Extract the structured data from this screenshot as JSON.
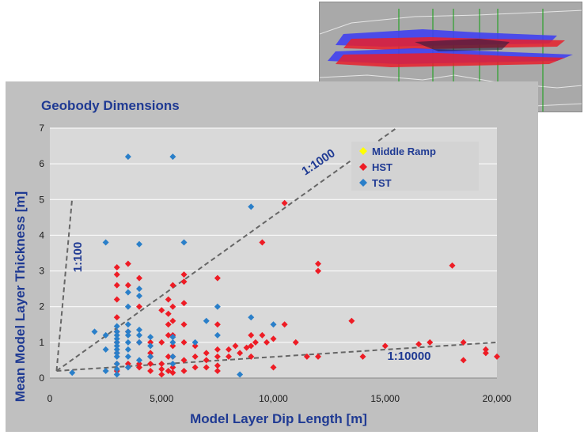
{
  "colors": {
    "panel": "#c0c0c0",
    "plot": "#d9d9d9",
    "title": "#1f3a93",
    "hst": "#ee1c25",
    "tst": "#2a7fc9",
    "middle_ramp": "#ffff00"
  },
  "chart_data": {
    "type": "scatter",
    "title": "Geobody Dimensions",
    "xlabel": "Model Layer Dip Length [m]",
    "ylabel": "Mean  Model Layer Thickness [m]",
    "xlim": [
      0,
      20000
    ],
    "ylim": [
      0,
      7
    ],
    "x_ticks": [
      "0",
      "5,000",
      "10,000",
      "15,000",
      "20,000"
    ],
    "y_ticks": [
      "0",
      "1",
      "2",
      "3",
      "4",
      "5",
      "6",
      "7"
    ],
    "grid": true,
    "legend_position": "top-right",
    "series": [
      {
        "name": "Middle Ramp",
        "color": "#ffff00",
        "points": []
      },
      {
        "name": "HST",
        "color": "#ee1c25",
        "points": [
          [
            3000,
            3.1
          ],
          [
            3000,
            2.9
          ],
          [
            3000,
            2.6
          ],
          [
            3000,
            2.2
          ],
          [
            3000,
            1.7
          ],
          [
            3000,
            1.3
          ],
          [
            3000,
            1.0
          ],
          [
            3000,
            0.7
          ],
          [
            3000,
            0.4
          ],
          [
            3000,
            0.2
          ],
          [
            3500,
            3.2
          ],
          [
            3500,
            2.6
          ],
          [
            3500,
            1.3
          ],
          [
            3500,
            0.4
          ],
          [
            4000,
            2.8
          ],
          [
            4000,
            2.0
          ],
          [
            4000,
            1.0
          ],
          [
            4000,
            0.4
          ],
          [
            4000,
            0.3
          ],
          [
            4500,
            1.0
          ],
          [
            4500,
            0.7
          ],
          [
            4500,
            0.6
          ],
          [
            4500,
            0.4
          ],
          [
            4500,
            0.2
          ],
          [
            5000,
            1.9
          ],
          [
            5000,
            1.0
          ],
          [
            5000,
            0.4
          ],
          [
            5000,
            0.25
          ],
          [
            5000,
            0.1
          ],
          [
            5300,
            2.2
          ],
          [
            5300,
            1.8
          ],
          [
            5300,
            1.5
          ],
          [
            5300,
            1.2
          ],
          [
            5300,
            0.6
          ],
          [
            5300,
            0.2
          ],
          [
            5500,
            2.6
          ],
          [
            5500,
            2.0
          ],
          [
            5500,
            1.6
          ],
          [
            5500,
            1.2
          ],
          [
            5500,
            0.9
          ],
          [
            5500,
            0.6
          ],
          [
            5500,
            0.3
          ],
          [
            5500,
            0.15
          ],
          [
            6000,
            2.9
          ],
          [
            6000,
            2.7
          ],
          [
            6000,
            2.1
          ],
          [
            6000,
            1.5
          ],
          [
            6000,
            1.0
          ],
          [
            6000,
            0.5
          ],
          [
            6000,
            0.2
          ],
          [
            6500,
            0.9
          ],
          [
            6500,
            0.6
          ],
          [
            6500,
            0.3
          ],
          [
            7000,
            0.7
          ],
          [
            7000,
            0.5
          ],
          [
            7000,
            0.3
          ],
          [
            7500,
            2.8
          ],
          [
            7500,
            1.5
          ],
          [
            7500,
            0.8
          ],
          [
            7500,
            0.6
          ],
          [
            7500,
            0.35
          ],
          [
            7500,
            0.2
          ],
          [
            8000,
            0.8
          ],
          [
            8000,
            0.6
          ],
          [
            8300,
            0.9
          ],
          [
            8500,
            0.7
          ],
          [
            8800,
            0.85
          ],
          [
            9000,
            1.2
          ],
          [
            9000,
            0.9
          ],
          [
            9000,
            0.6
          ],
          [
            9200,
            1.0
          ],
          [
            9500,
            3.8
          ],
          [
            9500,
            1.2
          ],
          [
            9700,
            1.0
          ],
          [
            10000,
            1.1
          ],
          [
            10000,
            0.3
          ],
          [
            10500,
            4.9
          ],
          [
            10500,
            1.5
          ],
          [
            11000,
            1.0
          ],
          [
            11500,
            0.6
          ],
          [
            12000,
            3.2
          ],
          [
            12000,
            3.0
          ],
          [
            12000,
            0.6
          ],
          [
            13500,
            1.6
          ],
          [
            14000,
            0.6
          ],
          [
            15000,
            0.9
          ],
          [
            16500,
            0.95
          ],
          [
            17000,
            1.0
          ],
          [
            18000,
            3.15
          ],
          [
            18500,
            1.0
          ],
          [
            18500,
            0.5
          ],
          [
            19500,
            0.8
          ],
          [
            19500,
            0.7
          ],
          [
            20000,
            0.6
          ]
        ]
      },
      {
        "name": "TST",
        "color": "#2a7fc9",
        "points": [
          [
            1000,
            0.15
          ],
          [
            2000,
            1.3
          ],
          [
            2500,
            3.8
          ],
          [
            2500,
            1.2
          ],
          [
            2500,
            0.8
          ],
          [
            2500,
            0.2
          ],
          [
            3000,
            1.45
          ],
          [
            3000,
            1.3
          ],
          [
            3000,
            1.2
          ],
          [
            3000,
            1.1
          ],
          [
            3000,
            1.0
          ],
          [
            3000,
            0.9
          ],
          [
            3000,
            0.8
          ],
          [
            3000,
            0.7
          ],
          [
            3000,
            0.6
          ],
          [
            3000,
            0.4
          ],
          [
            3000,
            0.25
          ],
          [
            3000,
            0.1
          ],
          [
            3500,
            6.2
          ],
          [
            3500,
            2.4
          ],
          [
            3500,
            2.0
          ],
          [
            3500,
            1.5
          ],
          [
            3500,
            1.3
          ],
          [
            3500,
            1.2
          ],
          [
            3500,
            1.0
          ],
          [
            3500,
            0.8
          ],
          [
            3500,
            0.6
          ],
          [
            3500,
            0.3
          ],
          [
            4000,
            3.75
          ],
          [
            4000,
            2.5
          ],
          [
            4000,
            2.3
          ],
          [
            4000,
            1.35
          ],
          [
            4000,
            1.2
          ],
          [
            4000,
            1.0
          ],
          [
            4000,
            0.5
          ],
          [
            4500,
            1.15
          ],
          [
            4500,
            0.9
          ],
          [
            4500,
            0.6
          ],
          [
            5500,
            6.2
          ],
          [
            5500,
            1.15
          ],
          [
            5500,
            1.0
          ],
          [
            5500,
            0.6
          ],
          [
            5500,
            0.4
          ],
          [
            6000,
            3.8
          ],
          [
            6500,
            1.0
          ],
          [
            7000,
            1.6
          ],
          [
            7500,
            2.0
          ],
          [
            7500,
            1.2
          ],
          [
            8500,
            0.1
          ],
          [
            9000,
            4.8
          ],
          [
            9000,
            1.7
          ],
          [
            10000,
            1.5
          ]
        ]
      }
    ],
    "reference_lines": [
      {
        "label": "1:100",
        "x": [
          300,
          1000
        ],
        "y": [
          0.2,
          5.05
        ]
      },
      {
        "label": "1:1000",
        "x": [
          300,
          15500
        ],
        "y": [
          0.2,
          7.0
        ]
      },
      {
        "label": "1:10000",
        "x": [
          300,
          20000
        ],
        "y": [
          0.2,
          1.0
        ]
      }
    ]
  }
}
